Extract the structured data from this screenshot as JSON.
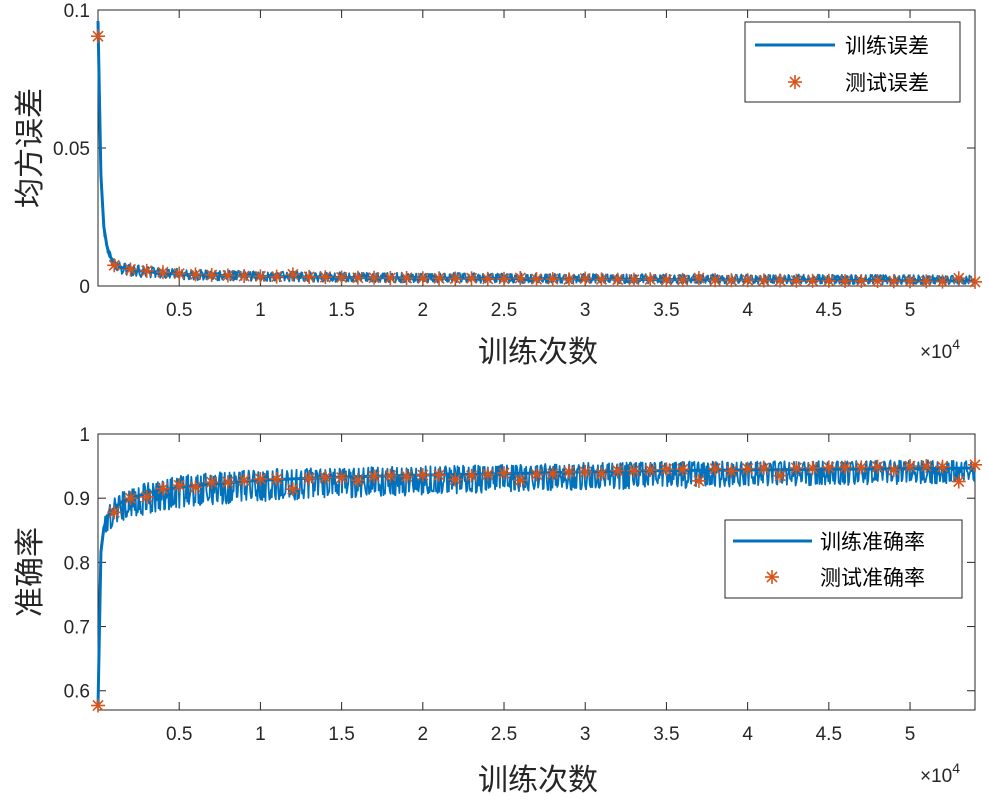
{
  "colors": {
    "train_line": "#0072BD",
    "test_marker": "#D95319",
    "axis": "#262626",
    "background": "#ffffff"
  },
  "chart_data": [
    {
      "type": "line",
      "xlabel": "训练次数",
      "ylabel": "均方误差",
      "x_exponent_label": "×10",
      "x_exponent_power": "4",
      "x_scale": 10000,
      "xlim": [
        0,
        54000
      ],
      "ylim": [
        0,
        0.1
      ],
      "xticks": [
        5000,
        10000,
        15000,
        20000,
        25000,
        30000,
        35000,
        40000,
        45000,
        50000
      ],
      "xtick_labels": [
        "0.5",
        "1",
        "1.5",
        "2",
        "2.5",
        "3",
        "3.5",
        "4",
        "4.5",
        "5"
      ],
      "yticks": [
        0,
        0.05,
        0.1
      ],
      "ytick_labels": [
        "0",
        "0.05",
        "0.1"
      ],
      "legend_position": "top-right",
      "series": [
        {
          "name": "训练误差",
          "style": "line",
          "x": [
            0,
            100,
            200,
            400,
            700,
            1000,
            1500,
            2000,
            3000,
            4000,
            5000,
            7000,
            10000,
            15000,
            20000,
            25000,
            30000,
            35000,
            40000,
            45000,
            50000,
            54000
          ],
          "y": [
            0.096,
            0.06,
            0.035,
            0.018,
            0.011,
            0.0085,
            0.0065,
            0.0058,
            0.0052,
            0.0047,
            0.0043,
            0.0039,
            0.0035,
            0.0031,
            0.0029,
            0.0027,
            0.0025,
            0.0023,
            0.0022,
            0.0021,
            0.0019,
            0.0018
          ],
          "band_high": [
            0.096,
            0.06,
            0.035,
            0.02,
            0.013,
            0.01,
            0.0085,
            0.0078,
            0.0072,
            0.0066,
            0.0062,
            0.0058,
            0.0054,
            0.005,
            0.0048,
            0.0046,
            0.0044,
            0.0043,
            0.0042,
            0.0041,
            0.004,
            0.0038
          ],
          "band_low": [
            0.096,
            0.06,
            0.035,
            0.016,
            0.009,
            0.006,
            0.0042,
            0.0036,
            0.003,
            0.0026,
            0.0023,
            0.002,
            0.0017,
            0.0014,
            0.0012,
            0.0011,
            0.001,
            0.0009,
            0.0008,
            0.0007,
            0.0006,
            0.0006
          ]
        },
        {
          "name": "测试误差",
          "style": "marker",
          "marker": "asterisk",
          "x": [
            0,
            1000,
            2000,
            3000,
            4000,
            5000,
            6000,
            7000,
            8000,
            9000,
            10000,
            11000,
            12000,
            13000,
            14000,
            15000,
            16000,
            17000,
            18000,
            19000,
            20000,
            21000,
            22000,
            23000,
            24000,
            25000,
            26000,
            27000,
            28000,
            29000,
            30000,
            31000,
            32000,
            33000,
            34000,
            35000,
            36000,
            37000,
            38000,
            39000,
            40000,
            41000,
            42000,
            43000,
            44000,
            45000,
            46000,
            47000,
            48000,
            49000,
            50000,
            51000,
            52000,
            53000,
            54000
          ],
          "y": [
            0.0905,
            0.0075,
            0.006,
            0.0055,
            0.005,
            0.0045,
            0.0042,
            0.004,
            0.0038,
            0.0036,
            0.0035,
            0.0034,
            0.0042,
            0.0033,
            0.0032,
            0.0031,
            0.003,
            0.003,
            0.0029,
            0.0029,
            0.0028,
            0.0028,
            0.0027,
            0.0028,
            0.0026,
            0.0026,
            0.0029,
            0.0025,
            0.0025,
            0.0024,
            0.0027,
            0.0024,
            0.0023,
            0.0023,
            0.0024,
            0.0022,
            0.0022,
            0.0029,
            0.0021,
            0.0021,
            0.0021,
            0.002,
            0.002,
            0.0019,
            0.0019,
            0.0019,
            0.0018,
            0.0018,
            0.0018,
            0.0017,
            0.0017,
            0.0017,
            0.0016,
            0.0028,
            0.0015
          ]
        }
      ]
    },
    {
      "type": "line",
      "xlabel": "训练次数",
      "ylabel": "准确率",
      "x_exponent_label": "×10",
      "x_exponent_power": "4",
      "x_scale": 10000,
      "xlim": [
        0,
        54000
      ],
      "ylim": [
        0.57,
        1.0
      ],
      "xticks": [
        5000,
        10000,
        15000,
        20000,
        25000,
        30000,
        35000,
        40000,
        45000,
        50000
      ],
      "xtick_labels": [
        "0.5",
        "1",
        "1.5",
        "2",
        "2.5",
        "3",
        "3.5",
        "4",
        "4.5",
        "5"
      ],
      "yticks": [
        0.6,
        0.7,
        0.8,
        0.9,
        1.0
      ],
      "ytick_labels": [
        "0.6",
        "0.7",
        "0.8",
        "0.9",
        "1"
      ],
      "legend_position": "right",
      "series": [
        {
          "name": "训练准确率",
          "style": "line",
          "x": [
            0,
            100,
            200,
            400,
            700,
            1000,
            1500,
            2000,
            3000,
            4000,
            5000,
            7000,
            10000,
            15000,
            20000,
            25000,
            30000,
            35000,
            40000,
            45000,
            50000,
            54000
          ],
          "y": [
            0.575,
            0.76,
            0.83,
            0.86,
            0.875,
            0.885,
            0.895,
            0.9,
            0.908,
            0.913,
            0.917,
            0.922,
            0.928,
            0.933,
            0.936,
            0.938,
            0.941,
            0.943,
            0.944,
            0.945,
            0.946,
            0.947
          ],
          "band_high": [
            0.575,
            0.78,
            0.85,
            0.87,
            0.89,
            0.9,
            0.91,
            0.915,
            0.925,
            0.93,
            0.935,
            0.94,
            0.945,
            0.948,
            0.95,
            0.952,
            0.955,
            0.957,
            0.958,
            0.958,
            0.959,
            0.959
          ],
          "band_low": [
            0.575,
            0.72,
            0.8,
            0.83,
            0.85,
            0.86,
            0.865,
            0.87,
            0.875,
            0.88,
            0.885,
            0.89,
            0.895,
            0.9,
            0.905,
            0.91,
            0.913,
            0.915,
            0.918,
            0.92,
            0.922,
            0.924
          ]
        },
        {
          "name": "测试准确率",
          "style": "marker",
          "marker": "asterisk",
          "x": [
            0,
            1000,
            2000,
            3000,
            4000,
            5000,
            6000,
            7000,
            8000,
            9000,
            10000,
            11000,
            12000,
            13000,
            14000,
            15000,
            16000,
            17000,
            18000,
            19000,
            20000,
            21000,
            22000,
            23000,
            24000,
            25000,
            26000,
            27000,
            28000,
            29000,
            30000,
            31000,
            32000,
            33000,
            34000,
            35000,
            36000,
            37000,
            38000,
            39000,
            40000,
            41000,
            42000,
            43000,
            44000,
            45000,
            46000,
            47000,
            48000,
            49000,
            50000,
            51000,
            52000,
            53000,
            54000
          ],
          "y": [
            0.577,
            0.878,
            0.9,
            0.902,
            0.915,
            0.92,
            0.917,
            0.925,
            0.925,
            0.928,
            0.93,
            0.93,
            0.914,
            0.931,
            0.932,
            0.932,
            0.928,
            0.934,
            0.935,
            0.934,
            0.936,
            0.936,
            0.929,
            0.935,
            0.937,
            0.939,
            0.928,
            0.937,
            0.938,
            0.941,
            0.941,
            0.938,
            0.943,
            0.943,
            0.944,
            0.945,
            0.945,
            0.927,
            0.946,
            0.942,
            0.946,
            0.947,
            0.935,
            0.947,
            0.947,
            0.948,
            0.948,
            0.948,
            0.949,
            0.944,
            0.95,
            0.95,
            0.949,
            0.926,
            0.952
          ]
        }
      ]
    }
  ]
}
